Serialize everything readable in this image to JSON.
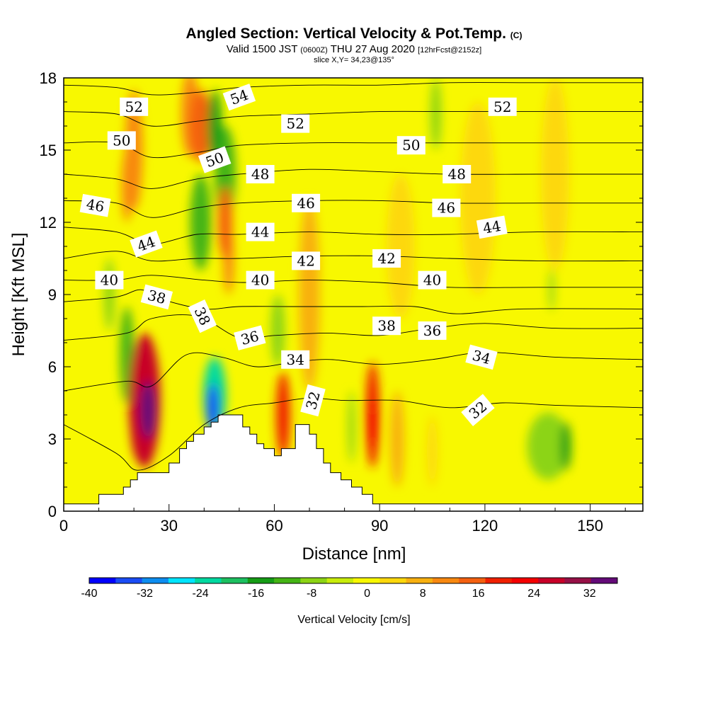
{
  "chart_data": {
    "type": "heatmap",
    "title": "Angled Section: Vertical Velocity & Pot.Temp.",
    "title_unit": "(C)",
    "subtitle_main": "Valid 1500 JST",
    "subtitle_utc": "(0600Z)",
    "subtitle_date": "THU 27 Aug 2020",
    "subtitle_fcst": "[12hrFcst@2152z]",
    "slice_info": "slice X,Y= 34,23@135°",
    "xlabel": "Distance [nm]",
    "ylabel": "Height [Kft MSL]",
    "xlim": [
      0,
      165
    ],
    "ylim": [
      0,
      18
    ],
    "x_ticks": [
      0,
      30,
      60,
      90,
      120,
      150
    ],
    "y_ticks": [
      0,
      3,
      6,
      9,
      12,
      15,
      18
    ],
    "colorbar": {
      "label": "Vertical Velocity [cm/s]",
      "range": [
        -40,
        36
      ],
      "tick_values": [
        -40,
        -32,
        -24,
        -16,
        -8,
        0,
        8,
        16,
        24,
        32
      ],
      "colors": [
        "#0000ff",
        "#1a4cf5",
        "#0d8df0",
        "#00e5ff",
        "#00d9a0",
        "#1cc060",
        "#159c15",
        "#44b414",
        "#8cd414",
        "#c8ec0a",
        "#f8f800",
        "#fdd80c",
        "#f8b010",
        "#f88810",
        "#f46010",
        "#f02000",
        "#f40000",
        "#c80028",
        "#961046",
        "#640a78"
      ]
    },
    "terrain_profile": [
      [
        0,
        0.3
      ],
      [
        10,
        0.3
      ],
      [
        10,
        0.7
      ],
      [
        17,
        0.7
      ],
      [
        17,
        1.0
      ],
      [
        19,
        1.0
      ],
      [
        19,
        1.3
      ],
      [
        21,
        1.3
      ],
      [
        21,
        1.6
      ],
      [
        30,
        1.6
      ],
      [
        30,
        2.0
      ],
      [
        33,
        2.0
      ],
      [
        33,
        2.6
      ],
      [
        35,
        2.6
      ],
      [
        35,
        2.9
      ],
      [
        37,
        2.9
      ],
      [
        37,
        3.2
      ],
      [
        40,
        3.2
      ],
      [
        40,
        3.5
      ],
      [
        42,
        3.5
      ],
      [
        42,
        3.7
      ],
      [
        44,
        3.7
      ],
      [
        44,
        4.0
      ],
      [
        51,
        4.0
      ],
      [
        51,
        3.5
      ],
      [
        53,
        3.5
      ],
      [
        53,
        3.2
      ],
      [
        55,
        3.2
      ],
      [
        55,
        2.8
      ],
      [
        57,
        2.8
      ],
      [
        57,
        2.6
      ],
      [
        60,
        2.6
      ],
      [
        60,
        2.3
      ],
      [
        62,
        2.3
      ],
      [
        62,
        2.6
      ],
      [
        66,
        2.6
      ],
      [
        66,
        3.6
      ],
      [
        70,
        3.6
      ],
      [
        70,
        3.2
      ],
      [
        72,
        3.2
      ],
      [
        72,
        2.6
      ],
      [
        74,
        2.6
      ],
      [
        74,
        2.0
      ],
      [
        76,
        2.0
      ],
      [
        76,
        1.6
      ],
      [
        79,
        1.6
      ],
      [
        79,
        1.3
      ],
      [
        82,
        1.3
      ],
      [
        82,
        1.0
      ],
      [
        85,
        1.0
      ],
      [
        85,
        0.7
      ],
      [
        88,
        0.7
      ],
      [
        88,
        0.3
      ],
      [
        165,
        0.3
      ]
    ],
    "velocity_cells": [
      {
        "x": 23,
        "y": 4.6,
        "rx": 4.5,
        "ry": 2.8,
        "w": 28
      },
      {
        "x": 24,
        "y": 4.2,
        "rx": 2.2,
        "ry": 1.2,
        "w": 36
      },
      {
        "x": 22,
        "y": 3.6,
        "rx": 3,
        "ry": 1.6,
        "w": 20
      },
      {
        "x": 43,
        "y": 4.8,
        "rx": 3.2,
        "ry": 1.6,
        "w": -22
      },
      {
        "x": 42.5,
        "y": 4.3,
        "rx": 1.8,
        "ry": 1.0,
        "w": -36
      },
      {
        "x": 62.5,
        "y": 4.0,
        "rx": 2.0,
        "ry": 1.8,
        "w": 18
      },
      {
        "x": 88,
        "y": 4.0,
        "rx": 2.0,
        "ry": 2.2,
        "w": 18
      },
      {
        "x": 88,
        "y": 3.6,
        "rx": 1.0,
        "ry": 0.9,
        "w": 24
      },
      {
        "x": 39,
        "y": 16,
        "rx": 3,
        "ry": 1.5,
        "w": 14
      },
      {
        "x": 36,
        "y": 16.5,
        "rx": 2.5,
        "ry": 1.8,
        "w": 12
      },
      {
        "x": 20,
        "y": 15,
        "rx": 2.5,
        "ry": 2.5,
        "w": 10
      },
      {
        "x": 46,
        "y": 12,
        "rx": 2,
        "ry": 1.5,
        "w": 14
      },
      {
        "x": 47,
        "y": 10.5,
        "rx": 1.5,
        "ry": 1.5,
        "w": 12
      },
      {
        "x": 18,
        "y": 13.5,
        "rx": 1.5,
        "ry": 1.5,
        "w": 10
      },
      {
        "x": 39,
        "y": 12,
        "rx": 3,
        "ry": 2,
        "w": -12
      },
      {
        "x": 43,
        "y": 16,
        "rx": 2,
        "ry": 1.5,
        "w": -14
      },
      {
        "x": 46,
        "y": 14,
        "rx": 3,
        "ry": 2,
        "w": -10
      },
      {
        "x": 18,
        "y": 6.5,
        "rx": 2,
        "ry": 2,
        "w": -10
      },
      {
        "x": 13,
        "y": 9,
        "rx": 1.5,
        "ry": 1.5,
        "w": -8
      },
      {
        "x": 61,
        "y": 7.5,
        "rx": 2,
        "ry": 1.5,
        "w": -6
      },
      {
        "x": 138,
        "y": 2.7,
        "rx": 6,
        "ry": 1.4,
        "w": -8
      },
      {
        "x": 143,
        "y": 2.7,
        "rx": 1.5,
        "ry": 1.0,
        "w": -14
      },
      {
        "x": 106,
        "y": 16.5,
        "rx": 1.5,
        "ry": 1.5,
        "w": -8
      },
      {
        "x": 139,
        "y": 9.2,
        "rx": 0.8,
        "ry": 0.9,
        "w": -8
      },
      {
        "x": 82,
        "y": 3.5,
        "rx": 1.0,
        "ry": 1.5,
        "w": -6
      },
      {
        "x": 96,
        "y": 11,
        "rx": 4,
        "ry": 3,
        "w": 5
      },
      {
        "x": 118,
        "y": 13,
        "rx": 5,
        "ry": 4,
        "w": 4
      },
      {
        "x": 140,
        "y": 14,
        "rx": 4,
        "ry": 4,
        "w": 4
      },
      {
        "x": 95,
        "y": 3,
        "rx": 2,
        "ry": 2,
        "w": 6
      },
      {
        "x": 105,
        "y": 2.5,
        "rx": 1.5,
        "ry": 1.5,
        "w": 5
      },
      {
        "x": 70,
        "y": 9,
        "rx": 3,
        "ry": 4,
        "w": 6
      }
    ],
    "theta_contours": [
      {
        "value": 32,
        "pts": [
          [
            0,
            3.6
          ],
          [
            15,
            2.4
          ],
          [
            21,
            1.7
          ],
          [
            30,
            2.3
          ],
          [
            40,
            3.6
          ],
          [
            50,
            4.3
          ],
          [
            60,
            4.5
          ],
          [
            70,
            4.7
          ],
          [
            80,
            4.6
          ],
          [
            95,
            4.6
          ],
          [
            110,
            4.3
          ],
          [
            125,
            4.5
          ],
          [
            140,
            4.4
          ],
          [
            165,
            4.3
          ]
        ]
      },
      {
        "value": 34,
        "pts": [
          [
            0,
            5.0
          ],
          [
            18,
            5.4
          ],
          [
            25,
            5.2
          ],
          [
            35,
            6.5
          ],
          [
            45,
            6.4
          ],
          [
            55,
            6.0
          ],
          [
            66,
            6.2
          ],
          [
            76,
            6.3
          ],
          [
            90,
            6.1
          ],
          [
            105,
            6.3
          ],
          [
            120,
            6.6
          ],
          [
            140,
            6.4
          ],
          [
            165,
            6.3
          ]
        ]
      },
      {
        "value": 36,
        "pts": [
          [
            0,
            7.1
          ],
          [
            18,
            7.4
          ],
          [
            25,
            8.0
          ],
          [
            38,
            8.1
          ],
          [
            50,
            7.2
          ],
          [
            60,
            7.3
          ],
          [
            75,
            7.4
          ],
          [
            90,
            7.3
          ],
          [
            105,
            7.6
          ],
          [
            120,
            7.8
          ],
          [
            140,
            7.6
          ],
          [
            165,
            7.6
          ]
        ]
      },
      {
        "value": 38,
        "pts": [
          [
            0,
            8.7
          ],
          [
            15,
            8.9
          ],
          [
            22,
            9.2
          ],
          [
            28,
            8.8
          ],
          [
            40,
            8.4
          ],
          [
            50,
            8.5
          ],
          [
            65,
            8.5
          ],
          [
            85,
            8.5
          ],
          [
            100,
            8.5
          ],
          [
            112,
            8.2
          ],
          [
            130,
            8.4
          ],
          [
            165,
            8.4
          ]
        ]
      },
      {
        "value": 40,
        "pts": [
          [
            0,
            9.6
          ],
          [
            15,
            9.6
          ],
          [
            25,
            9.8
          ],
          [
            40,
            9.6
          ],
          [
            52,
            9.5
          ],
          [
            70,
            9.6
          ],
          [
            90,
            9.5
          ],
          [
            110,
            9.3
          ],
          [
            135,
            9.3
          ],
          [
            165,
            9.3
          ]
        ]
      },
      {
        "value": 42,
        "pts": [
          [
            0,
            10.5
          ],
          [
            15,
            10.8
          ],
          [
            25,
            10.4
          ],
          [
            38,
            10.5
          ],
          [
            50,
            10.5
          ],
          [
            70,
            10.6
          ],
          [
            90,
            10.6
          ],
          [
            110,
            10.5
          ],
          [
            135,
            10.4
          ],
          [
            165,
            10.4
          ]
        ]
      },
      {
        "value": 44,
        "pts": [
          [
            0,
            11.8
          ],
          [
            15,
            11.6
          ],
          [
            25,
            11.1
          ],
          [
            38,
            11.5
          ],
          [
            50,
            11.5
          ],
          [
            70,
            11.6
          ],
          [
            90,
            11.5
          ],
          [
            110,
            11.5
          ],
          [
            135,
            11.6
          ],
          [
            165,
            11.6
          ]
        ]
      },
      {
        "value": 46,
        "pts": [
          [
            0,
            12.9
          ],
          [
            15,
            12.8
          ],
          [
            25,
            12.2
          ],
          [
            38,
            12.6
          ],
          [
            50,
            12.8
          ],
          [
            70,
            12.9
          ],
          [
            90,
            12.9
          ],
          [
            110,
            12.8
          ],
          [
            135,
            12.8
          ],
          [
            165,
            12.8
          ]
        ]
      },
      {
        "value": 48,
        "pts": [
          [
            0,
            14.0
          ],
          [
            15,
            13.8
          ],
          [
            25,
            13.4
          ],
          [
            38,
            13.8
          ],
          [
            50,
            14.0
          ],
          [
            70,
            14.2
          ],
          [
            90,
            14.1
          ],
          [
            110,
            14.0
          ],
          [
            135,
            14.0
          ],
          [
            165,
            14.0
          ]
        ]
      },
      {
        "value": 50,
        "pts": [
          [
            0,
            15.3
          ],
          [
            15,
            15.3
          ],
          [
            25,
            14.7
          ],
          [
            38,
            14.9
          ],
          [
            50,
            15.2
          ],
          [
            70,
            15.3
          ],
          [
            90,
            15.3
          ],
          [
            110,
            15.3
          ],
          [
            135,
            15.3
          ],
          [
            165,
            15.3
          ]
        ]
      },
      {
        "value": 52,
        "pts": [
          [
            0,
            16.6
          ],
          [
            15,
            16.5
          ],
          [
            25,
            16.0
          ],
          [
            38,
            16.2
          ],
          [
            50,
            16.4
          ],
          [
            70,
            16.5
          ],
          [
            90,
            16.6
          ],
          [
            110,
            16.6
          ],
          [
            135,
            16.6
          ],
          [
            165,
            16.6
          ]
        ]
      },
      {
        "value": 54,
        "pts": [
          [
            0,
            17.7
          ],
          [
            15,
            17.6
          ],
          [
            25,
            17.3
          ],
          [
            38,
            17.4
          ],
          [
            50,
            17.6
          ],
          [
            70,
            17.7
          ],
          [
            90,
            17.7
          ],
          [
            110,
            17.8
          ],
          [
            135,
            17.8
          ],
          [
            165,
            17.8
          ]
        ]
      }
    ],
    "contour_labels": [
      {
        "text": "52",
        "x": 20,
        "y": 16.8,
        "angle": 0
      },
      {
        "text": "54",
        "x": 50,
        "y": 17.2,
        "angle": -20
      },
      {
        "text": "52",
        "x": 66,
        "y": 16.1,
        "angle": 0
      },
      {
        "text": "52",
        "x": 125,
        "y": 16.8,
        "angle": 0
      },
      {
        "text": "50",
        "x": 16.5,
        "y": 15.4,
        "angle": 0
      },
      {
        "text": "50",
        "x": 43,
        "y": 14.6,
        "angle": -20
      },
      {
        "text": "50",
        "x": 99,
        "y": 15.2,
        "angle": 0
      },
      {
        "text": "48",
        "x": 56,
        "y": 14.0,
        "angle": 0
      },
      {
        "text": "48",
        "x": 112,
        "y": 14.0,
        "angle": 0
      },
      {
        "text": "46",
        "x": 9,
        "y": 12.7,
        "angle": 10
      },
      {
        "text": "46",
        "x": 69,
        "y": 12.8,
        "angle": 0
      },
      {
        "text": "46",
        "x": 109,
        "y": 12.6,
        "angle": 0
      },
      {
        "text": "44",
        "x": 23.5,
        "y": 11.1,
        "angle": -20
      },
      {
        "text": "44",
        "x": 56,
        "y": 11.6,
        "angle": 0
      },
      {
        "text": "44",
        "x": 122,
        "y": 11.8,
        "angle": -10
      },
      {
        "text": "42",
        "x": 69,
        "y": 10.4,
        "angle": 0
      },
      {
        "text": "42",
        "x": 92,
        "y": 10.5,
        "angle": 0
      },
      {
        "text": "40",
        "x": 13,
        "y": 9.6,
        "angle": 0
      },
      {
        "text": "40",
        "x": 56,
        "y": 9.6,
        "angle": 0
      },
      {
        "text": "40",
        "x": 105,
        "y": 9.6,
        "angle": 0
      },
      {
        "text": "38",
        "x": 26.5,
        "y": 8.9,
        "angle": 15
      },
      {
        "text": "38",
        "x": 39.5,
        "y": 8.1,
        "angle": 65
      },
      {
        "text": "38",
        "x": 92,
        "y": 7.7,
        "angle": 0
      },
      {
        "text": "36",
        "x": 53,
        "y": 7.2,
        "angle": -15
      },
      {
        "text": "36",
        "x": 105,
        "y": 7.5,
        "angle": 0
      },
      {
        "text": "34",
        "x": 66,
        "y": 6.3,
        "angle": 0
      },
      {
        "text": "34",
        "x": 119,
        "y": 6.4,
        "angle": 15
      },
      {
        "text": "32",
        "x": 71,
        "y": 4.6,
        "angle": -75
      },
      {
        "text": "32",
        "x": 118,
        "y": 4.2,
        "angle": -40
      }
    ]
  }
}
